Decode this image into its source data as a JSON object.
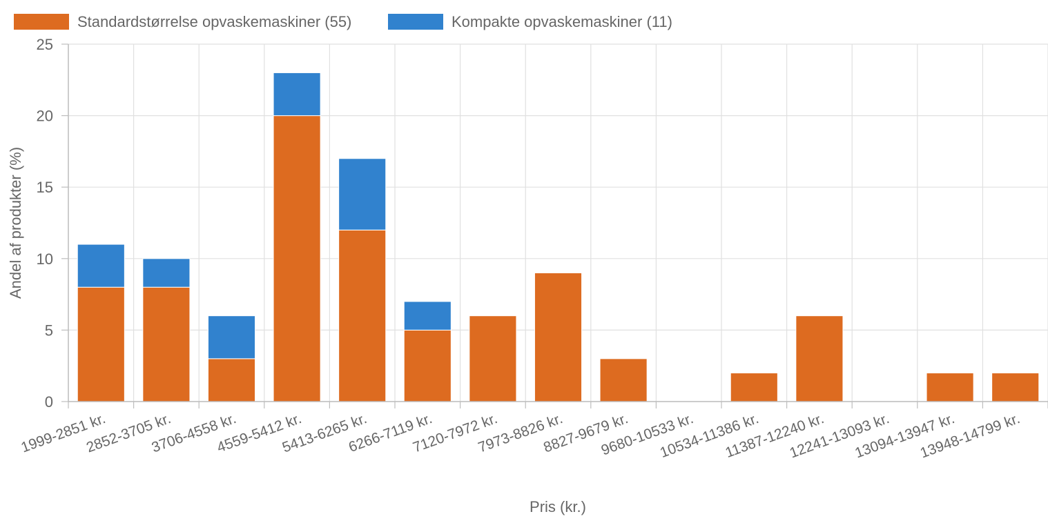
{
  "chart_data": {
    "type": "bar",
    "stacked": true,
    "categories": [
      "1999-2851 kr.",
      "2852-3705 kr.",
      "3706-4558 kr.",
      "4559-5412 kr.",
      "5413-6265 kr.",
      "6266-7119 kr.",
      "7120-7972 kr.",
      "7973-8826 kr.",
      "8827-9679 kr.",
      "9680-10533 kr.",
      "10534-11386 kr.",
      "11387-12240 kr.",
      "12241-13093 kr.",
      "13094-13947 kr.",
      "13948-14799 kr."
    ],
    "series": [
      {
        "name": "Standardstørrelse opvaskemaskiner (55)",
        "color": "#dd6b20",
        "values": [
          8,
          8,
          3,
          20,
          12,
          5,
          6,
          9,
          3,
          0,
          2,
          6,
          0,
          2,
          2
        ]
      },
      {
        "name": "Kompakte opvaskemaskiner (11)",
        "color": "#3182ce",
        "values": [
          3,
          2,
          3,
          3,
          5,
          2,
          0,
          0,
          0,
          0,
          0,
          0,
          0,
          0,
          0
        ]
      }
    ],
    "title": "",
    "xlabel": "Pris (kr.)",
    "ylabel": "Andel af produkter (%)",
    "ylim": [
      0,
      25
    ],
    "yticks": [
      0,
      5,
      10,
      15,
      20,
      25
    ],
    "grid": true,
    "legend_position": "top-left"
  }
}
